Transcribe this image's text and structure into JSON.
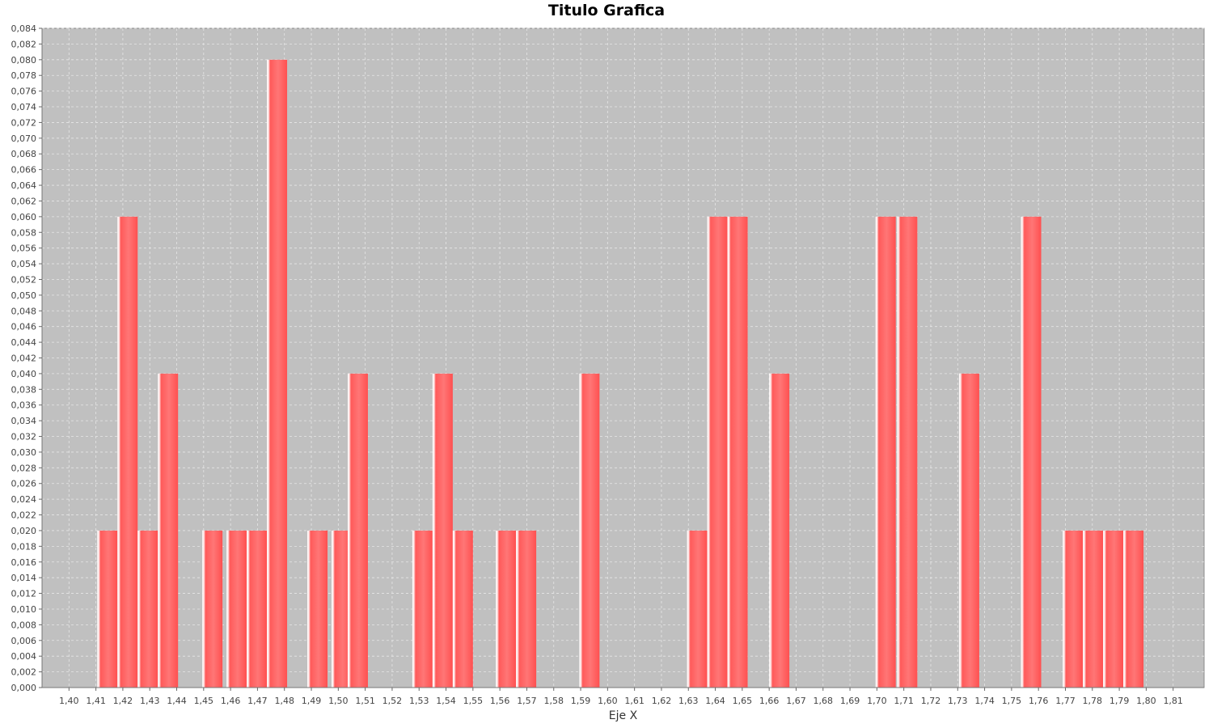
{
  "chart_data": {
    "type": "bar",
    "title": "Titulo Grafica",
    "xlabel": "Eje X",
    "ylabel": "",
    "x_ticks": [
      "1,40",
      "1,41",
      "1,42",
      "1,43",
      "1,44",
      "1,45",
      "1,46",
      "1,47",
      "1,48",
      "1,49",
      "1,50",
      "1,51",
      "1,52",
      "1,53",
      "1,54",
      "1,55",
      "1,56",
      "1,57",
      "1,58",
      "1,59",
      "1,60",
      "1,61",
      "1,62",
      "1,63",
      "1,64",
      "1,65",
      "1,66",
      "1,67",
      "1,68",
      "1,69",
      "1,70",
      "1,71",
      "1,72",
      "1,73",
      "1,74",
      "1,75",
      "1,76",
      "1,77",
      "1,78",
      "1,79",
      "1,80",
      "1,81"
    ],
    "xlim": [
      1.39,
      1.8215
    ],
    "ylim": [
      0,
      0.084
    ],
    "y_tick_step": 0.002,
    "decimal_separator": ",",
    "bars": [
      {
        "start": 1.4105,
        "end": 1.418,
        "value": 0.02
      },
      {
        "start": 1.418,
        "end": 1.4255,
        "value": 0.06
      },
      {
        "start": 1.4255,
        "end": 1.433,
        "value": 0.02
      },
      {
        "start": 1.433,
        "end": 1.4405,
        "value": 0.04
      },
      {
        "start": 1.4495,
        "end": 1.457,
        "value": 0.02
      },
      {
        "start": 1.4585,
        "end": 1.466,
        "value": 0.02
      },
      {
        "start": 1.466,
        "end": 1.4735,
        "value": 0.02
      },
      {
        "start": 1.4735,
        "end": 1.481,
        "value": 0.08
      },
      {
        "start": 1.4885,
        "end": 1.496,
        "value": 0.02
      },
      {
        "start": 1.4975,
        "end": 1.505,
        "value": 0.02
      },
      {
        "start": 1.5035,
        "end": 1.511,
        "value": 0.04
      },
      {
        "start": 1.5275,
        "end": 1.535,
        "value": 0.02
      },
      {
        "start": 1.535,
        "end": 1.5425,
        "value": 0.04
      },
      {
        "start": 1.5425,
        "end": 1.55,
        "value": 0.02
      },
      {
        "start": 1.5585,
        "end": 1.566,
        "value": 0.02
      },
      {
        "start": 1.566,
        "end": 1.5735,
        "value": 0.02
      },
      {
        "start": 1.5895,
        "end": 1.597,
        "value": 0.04
      },
      {
        "start": 1.6295,
        "end": 1.637,
        "value": 0.02
      },
      {
        "start": 1.637,
        "end": 1.6445,
        "value": 0.06
      },
      {
        "start": 1.6445,
        "end": 1.652,
        "value": 0.06
      },
      {
        "start": 1.66,
        "end": 1.6675,
        "value": 0.04
      },
      {
        "start": 1.6995,
        "end": 1.707,
        "value": 0.06
      },
      {
        "start": 1.7075,
        "end": 1.715,
        "value": 0.06
      },
      {
        "start": 1.7305,
        "end": 1.738,
        "value": 0.04
      },
      {
        "start": 1.7535,
        "end": 1.761,
        "value": 0.06
      },
      {
        "start": 1.769,
        "end": 1.7765,
        "value": 0.02
      },
      {
        "start": 1.7765,
        "end": 1.784,
        "value": 0.02
      },
      {
        "start": 1.784,
        "end": 1.7915,
        "value": 0.02
      },
      {
        "start": 1.7915,
        "end": 1.799,
        "value": 0.02
      }
    ],
    "legend": "none",
    "grid": true,
    "colors": {
      "plot_background": "#c0c0c0",
      "grid": "#e6e6e6",
      "bar": "#ff5555",
      "bar_highlight": "#ffd0d0"
    }
  }
}
